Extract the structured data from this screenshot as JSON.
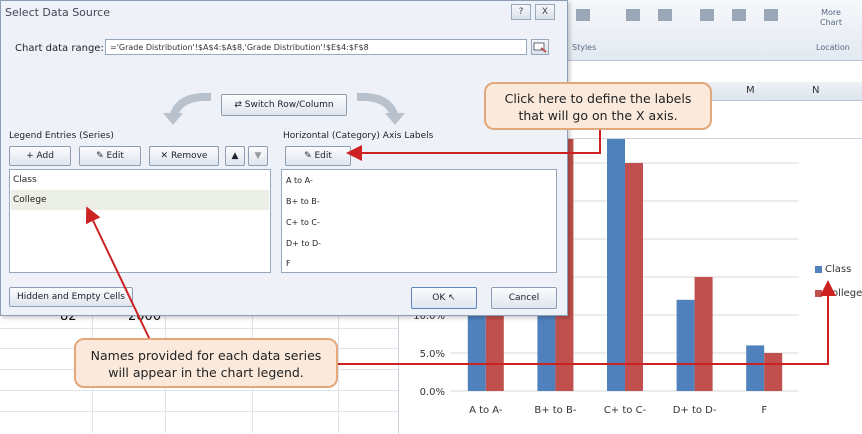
{
  "ribbon": {
    "group_chart_styles": "Styles",
    "more_chart": "More Chart",
    "group_location": "Location"
  },
  "sheet": {
    "columns": [
      "M",
      "N"
    ],
    "cell_82": "82",
    "cell_2000": "2000"
  },
  "dialog": {
    "title": "Select Data Source",
    "title_buttons": [
      "?",
      "X"
    ],
    "range_label": "Chart data range:",
    "range_value": "='Grade Distribution'!$A$4:$A$8,'Grade Distribution'!$E$4:$F$8",
    "switch_label": "Switch Row/Column",
    "legend_entries_label": "Legend Entries (Series)",
    "axis_labels_label": "Horizontal (Category) Axis Labels",
    "series_buttons": {
      "add": "Add",
      "edit": "Edit",
      "remove": "Remove",
      "up": "▲",
      "down": "▼"
    },
    "axis_edit": "Edit",
    "series": [
      "Class",
      "College"
    ],
    "selected_series": "College",
    "axis_labels": [
      "A to A-",
      "B+ to B-",
      "C+ to C-",
      "D+ to D-",
      "F"
    ],
    "hidden_empty_label": "Hidden and Empty Cells",
    "ok_label": "OK",
    "cancel_label": "Cancel"
  },
  "callouts": {
    "top": [
      "Click here to define the labels",
      "that will go on the X axis."
    ],
    "bottom": [
      "Names provided for each data series",
      "will appear in the chart legend."
    ]
  },
  "colors": {
    "class": "#4f81bd",
    "college": "#c0504d",
    "callout_fill": "#fbeadc",
    "callout_border": "#e2a87c",
    "annotation_arrow": "#cc2222"
  },
  "chart_data": {
    "type": "bar",
    "categories": [
      "A to A-",
      "B+ to B-",
      "C+ to C-",
      "D+ to D-",
      "F"
    ],
    "series": [
      {
        "name": "Class",
        "values": [
          25.0,
          30.0,
          36.0,
          12.0,
          6.0
        ]
      },
      {
        "name": "College",
        "values": [
          20.0,
          34.0,
          30.0,
          15.0,
          5.0
        ]
      }
    ],
    "y_ticks": [
      "0.0%",
      "5.0%",
      "10.0%"
    ],
    "ylim": [
      0,
      40
    ],
    "grid": true,
    "legend": "right"
  }
}
